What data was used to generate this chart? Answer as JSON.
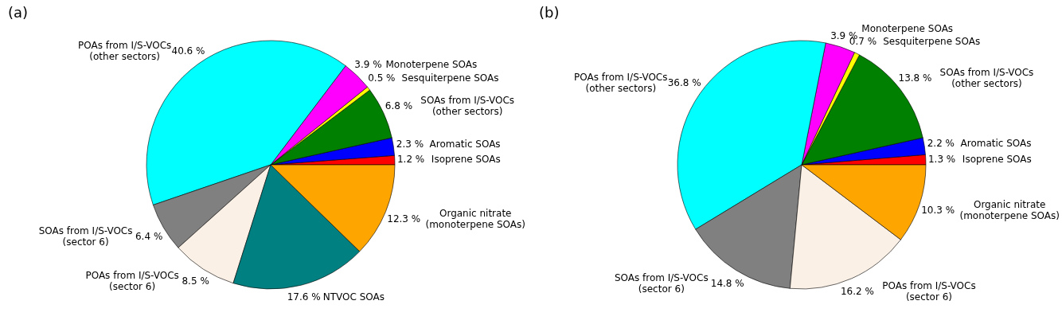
{
  "chart_data": [
    {
      "type": "pie",
      "title": "(a)",
      "categories": [
        "Isoprene SOAs",
        "Aromatic SOAs",
        "SOAs from I/S-VOCs\n(other sectors)",
        "Sesquiterpene SOAs",
        "Monoterpene SOAs",
        "POAs from I/S-VOCs\n(other sectors)",
        "SOAs  from I/S-VOCs\n(sector 6)",
        "POAs  from I/S-VOCs\n(sector 6)",
        "NTVOC SOAs",
        "Organic nitrate\n(monoterpene SOAs)"
      ],
      "values": [
        1.2,
        2.3,
        6.8,
        0.5,
        3.9,
        40.6,
        6.4,
        8.5,
        17.6,
        12.3
      ],
      "value_labels": [
        "1.2 %",
        "2.3 %",
        "6.8 %",
        "0.5 %",
        "3.9 %",
        "40.6 %",
        "6.4 %",
        "8.5 %",
        "17.6 %",
        "12.3 %"
      ],
      "colors": [
        "#ff0000",
        "#0000ff",
        "#008000",
        "#ffff00",
        "#ff00ff",
        "#00ffff",
        "#808080",
        "#faf0e6",
        "#008080",
        "#ffa500"
      ]
    },
    {
      "type": "pie",
      "title": "(b)",
      "categories": [
        "Isoprene SOAs",
        "Aromatic SOAs",
        "SOAs from I/S-VOCs\n(other sectors)",
        "Sesquiterpene SOAs",
        "Monoterpene SOAs",
        "POAs from I/S-VOCs\n(other sectors)",
        "SOAs  from I/S-VOCs\n(sector 6)",
        "POAs from I/S-VOCs\n(sector 6)",
        "Organic nitrate\n(monoterpene SOAs)"
      ],
      "values": [
        1.3,
        2.2,
        13.8,
        0.7,
        3.9,
        36.8,
        14.8,
        16.2,
        10.3
      ],
      "value_labels": [
        "1.3 %",
        "2.2 %",
        "13.8 %",
        "0.7 %",
        "3.9 %",
        "36.8 %",
        "14.8 %",
        "16.2 %",
        "10.3 %"
      ],
      "colors": [
        "#ff0000",
        "#0000ff",
        "#008000",
        "#ffff00",
        "#ff00ff",
        "#00ffff",
        "#808080",
        "#faf0e6",
        "#ffa500"
      ]
    }
  ]
}
